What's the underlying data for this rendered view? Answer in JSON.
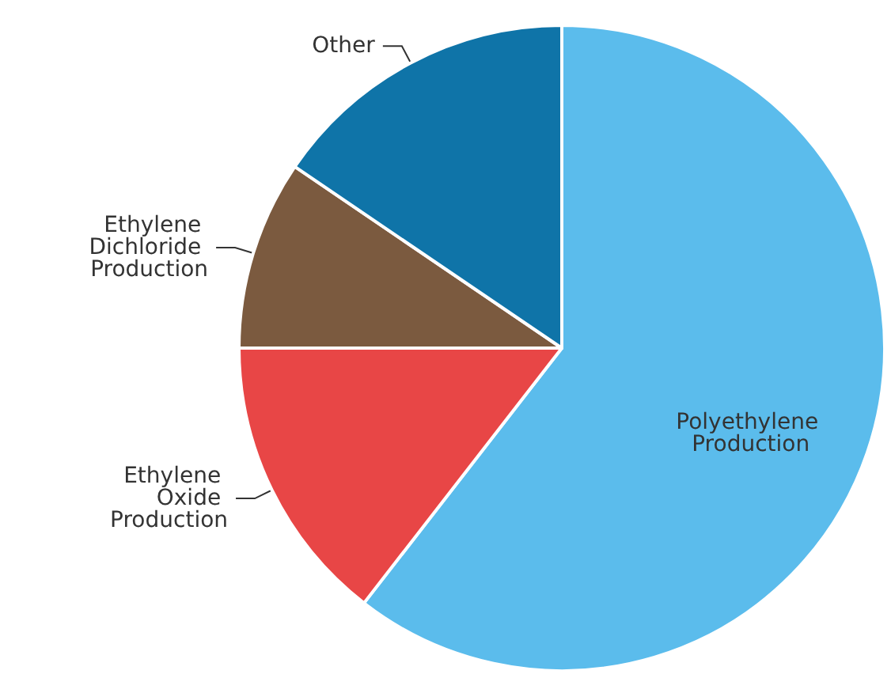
{
  "chart_data": {
    "type": "pie",
    "categories": [
      "Polyethylene Production",
      "Ethylene Oxide Production",
      "Ethylene Dichloride Production",
      "Other"
    ],
    "values": [
      60.5,
      14.5,
      9.5,
      15.5
    ],
    "colors": [
      "#5bbcec",
      "#e84646",
      "#7b5a3f",
      "#0f74a8"
    ]
  }
}
